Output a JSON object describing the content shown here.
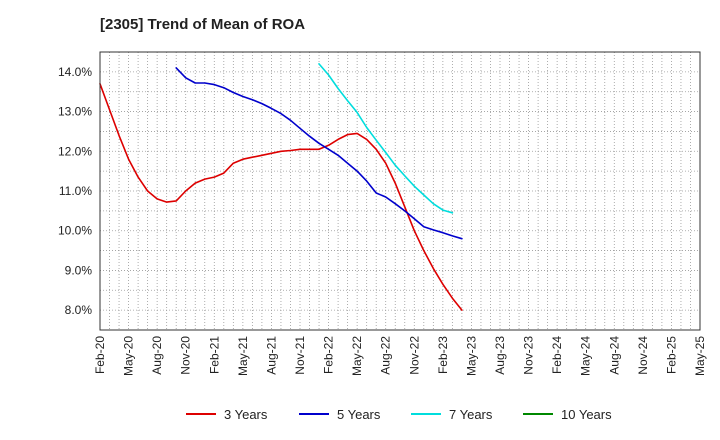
{
  "chart_data": {
    "type": "line",
    "title": "[2305]  Trend of Mean of ROA",
    "xlabel": "",
    "ylabel": "",
    "x_ticks": [
      "Feb-20",
      "May-20",
      "Aug-20",
      "Nov-20",
      "Feb-21",
      "May-21",
      "Aug-21",
      "Nov-21",
      "Feb-22",
      "May-22",
      "Aug-22",
      "Nov-22",
      "Feb-23",
      "May-23",
      "Aug-23",
      "Nov-23",
      "Feb-24",
      "May-24",
      "Aug-24",
      "Nov-24",
      "Feb-25",
      "May-25"
    ],
    "y_ticks": [
      "8.0%",
      "9.0%",
      "10.0%",
      "11.0%",
      "12.0%",
      "13.0%",
      "14.0%"
    ],
    "ylim": [
      7.5,
      14.5
    ],
    "grid": true,
    "legend_position": "bottom",
    "series": [
      {
        "name": "3 Years",
        "color": "#dd0000",
        "values": [
          13.7,
          13.05,
          12.4,
          11.8,
          11.35,
          11.0,
          10.8,
          10.72,
          10.75,
          11.0,
          11.2,
          11.3,
          11.35,
          11.45,
          11.7,
          11.8,
          11.85,
          11.9,
          11.95,
          12.0,
          12.02,
          12.05,
          12.05,
          12.05,
          12.15,
          12.3,
          12.42,
          12.45,
          12.3,
          12.05,
          11.7,
          11.2,
          10.6,
          10.0,
          9.5,
          9.05,
          8.65,
          8.3,
          8.0
        ]
      },
      {
        "name": "5 Years",
        "color": "#0000cc",
        "values": [
          null,
          null,
          null,
          null,
          null,
          null,
          null,
          null,
          14.1,
          13.85,
          13.72,
          13.72,
          13.68,
          13.6,
          13.48,
          13.38,
          13.3,
          13.2,
          13.08,
          12.95,
          12.78,
          12.58,
          12.38,
          12.2,
          12.05,
          11.9,
          11.7,
          11.5,
          11.25,
          10.95,
          10.85,
          10.68,
          10.5,
          10.3,
          10.1,
          10.02,
          9.95,
          9.87,
          9.8
        ]
      },
      {
        "name": "7 Years",
        "color": "#00dddd",
        "values": [
          null,
          null,
          null,
          null,
          null,
          null,
          null,
          null,
          null,
          null,
          null,
          null,
          null,
          null,
          null,
          null,
          null,
          null,
          null,
          null,
          null,
          null,
          null,
          14.2,
          13.92,
          13.58,
          13.27,
          12.98,
          12.6,
          12.28,
          11.97,
          11.65,
          11.38,
          11.12,
          10.9,
          10.68,
          10.52,
          10.45
        ]
      },
      {
        "name": "10 Years",
        "color": "#008800",
        "values": []
      }
    ]
  }
}
